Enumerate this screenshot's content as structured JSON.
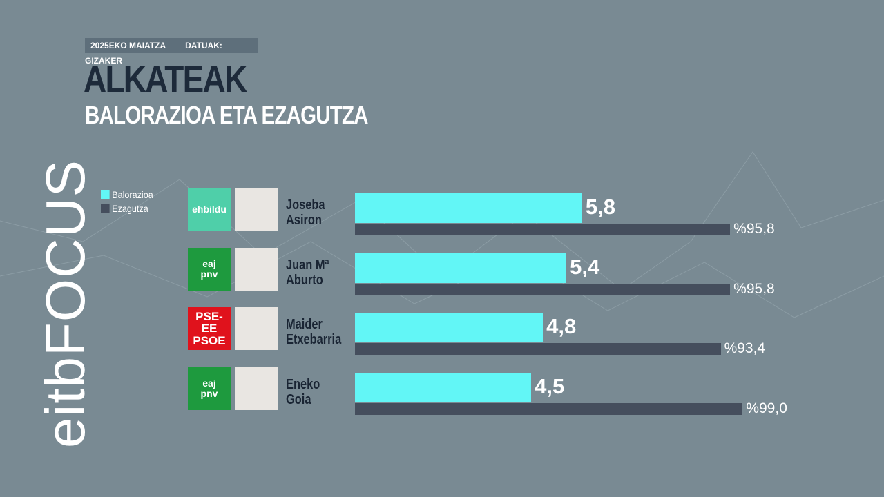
{
  "chart_data": {
    "type": "bar",
    "orientation": "horizontal",
    "brand": "eitbFOCUS",
    "date": "2025EKO MAIATZA",
    "source": "DATUAK: GIZAKER",
    "title": "ALKATEAK",
    "subtitle": "BALORAZIOA ETA EZAGUTZA",
    "categories": [
      "Joseba\nAsiron",
      "Juan Mª\nAburto",
      "Maider\nEtxebarria",
      "Eneko\nGoia"
    ],
    "parties": [
      "ehbildu",
      "eaj\npnv",
      "PSE-EE\nPSOE",
      "eaj\npnv"
    ],
    "party_colors": [
      "#4fcfa9",
      "#1e9a3e",
      "#e0121c",
      "#1e9a3e"
    ],
    "xlim": [
      0,
      10
    ],
    "x2lim": [
      0,
      100
    ],
    "series": [
      {
        "name": "Balorazioa",
        "color": "#62f6f6",
        "values": [
          5.8,
          5.4,
          4.8,
          4.5
        ],
        "value_labels": [
          "5,8",
          "5,4",
          "4,8",
          "4,5"
        ]
      },
      {
        "name": "Ezagutza",
        "color": "#454e5d",
        "axis": "x2",
        "values": [
          95.8,
          95.8,
          93.4,
          99.0
        ],
        "value_labels": [
          "%95,8",
          "%95,8",
          "%93,4",
          "%99,0"
        ]
      }
    ]
  }
}
